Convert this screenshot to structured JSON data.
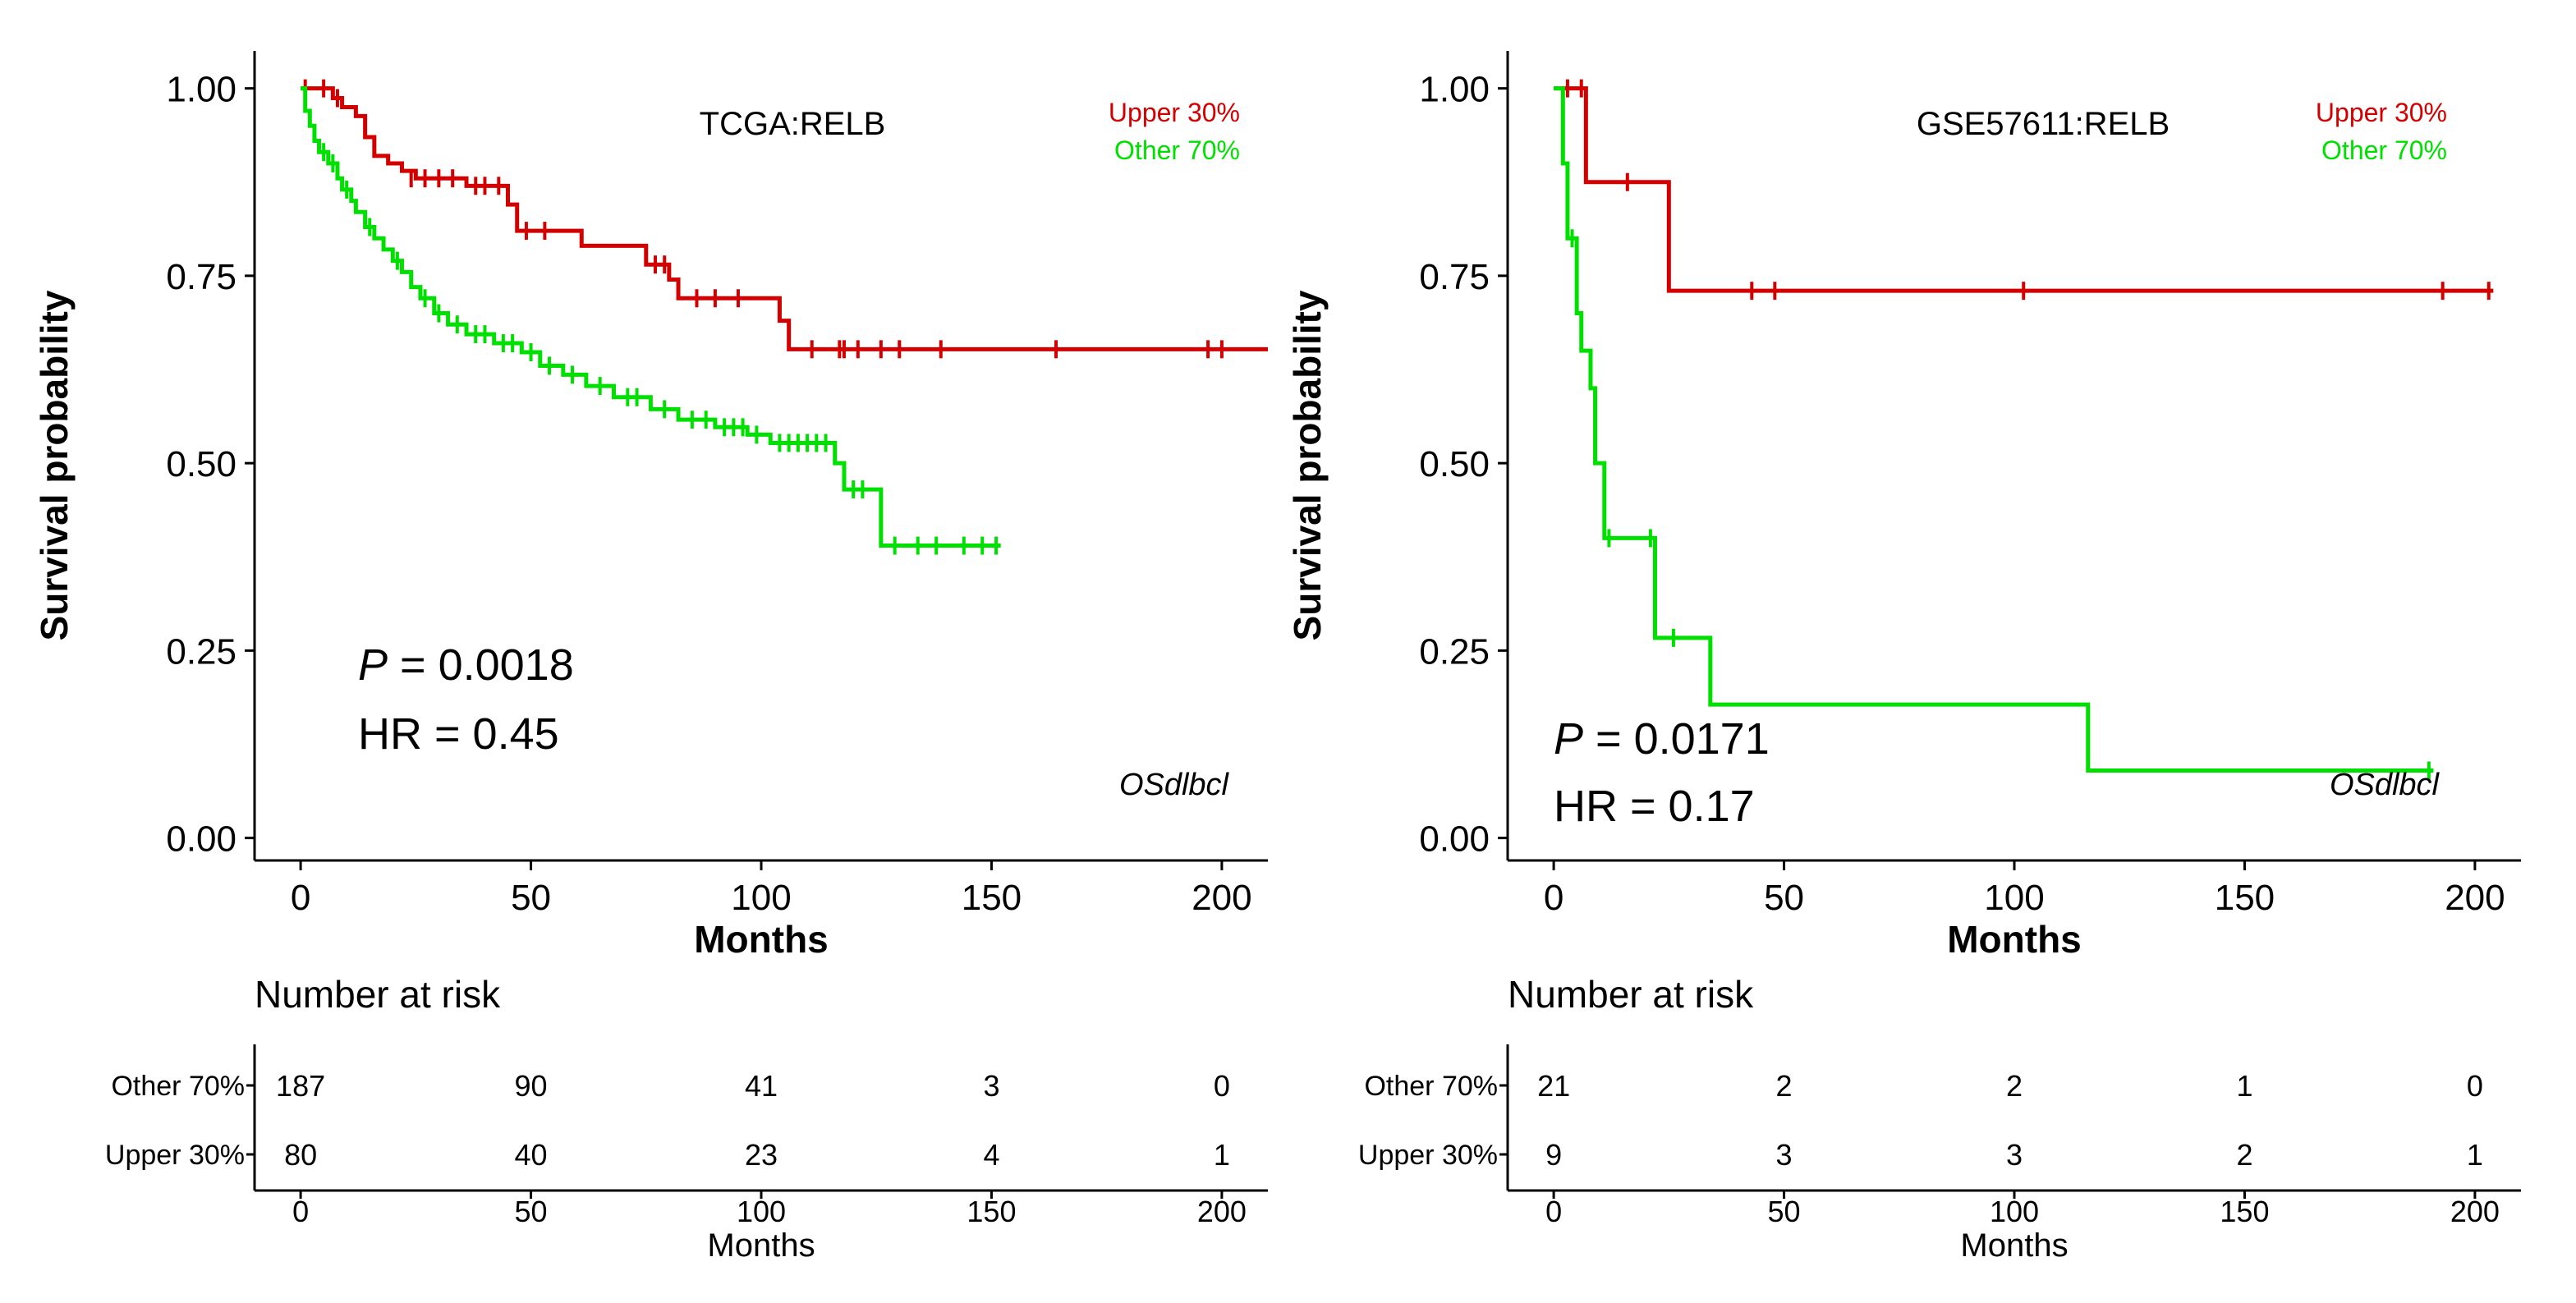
{
  "colors": {
    "upper": "#d40000",
    "other": "#00e000",
    "axis": "#000000"
  },
  "chart_data": [
    {
      "type": "line",
      "subtype": "kaplan-meier",
      "title": "TCGA:RELB",
      "xlabel": "Months",
      "ylabel": "Survival probability",
      "xlim": [
        -10,
        210
      ],
      "ylim": [
        -0.03,
        1.05
      ],
      "xticks": [
        0,
        50,
        100,
        150,
        200
      ],
      "xtick_labels": [
        "0",
        "50",
        "100",
        "150",
        "200"
      ],
      "yticks": [
        0,
        0.25,
        0.5,
        0.75,
        1.0
      ],
      "ytick_labels": [
        "0.00",
        "0.25",
        "0.50",
        "0.75",
        "1.00"
      ],
      "legend": {
        "position": "top-right",
        "entries": [
          "Upper 30%",
          "Other  70%"
        ]
      },
      "p_label": "P",
      "p_value": " = 0.0018",
      "hr_text": "HR = 0.45",
      "corner_label": "OSdlbcl",
      "series": [
        {
          "name": "Upper 30%",
          "color_key": "upper",
          "steps": [
            [
              0,
              1.0
            ],
            [
              7,
              0.987
            ],
            [
              9,
              0.975
            ],
            [
              12,
              0.963
            ],
            [
              14,
              0.935
            ],
            [
              16,
              0.91
            ],
            [
              19,
              0.9
            ],
            [
              22,
              0.89
            ],
            [
              25,
              0.88
            ],
            [
              36,
              0.87
            ],
            [
              45,
              0.845
            ],
            [
              47,
              0.81
            ],
            [
              61,
              0.79
            ],
            [
              75,
              0.765
            ],
            [
              80,
              0.745
            ],
            [
              82,
              0.72
            ],
            [
              104,
              0.69
            ],
            [
              106,
              0.652
            ],
            [
              210,
              0.652
            ]
          ],
          "censor": [
            [
              1,
              1.0
            ],
            [
              5,
              1.0
            ],
            [
              8,
              0.987
            ],
            [
              24,
              0.88
            ],
            [
              27,
              0.88
            ],
            [
              30,
              0.88
            ],
            [
              33,
              0.88
            ],
            [
              38,
              0.87
            ],
            [
              40,
              0.87
            ],
            [
              43,
              0.87
            ],
            [
              49,
              0.81
            ],
            [
              53,
              0.81
            ],
            [
              77,
              0.765
            ],
            [
              79,
              0.765
            ],
            [
              86,
              0.72
            ],
            [
              90,
              0.72
            ],
            [
              95,
              0.72
            ],
            [
              111,
              0.652
            ],
            [
              117,
              0.652
            ],
            [
              118,
              0.652
            ],
            [
              121,
              0.652
            ],
            [
              126,
              0.652
            ],
            [
              130,
              0.652
            ],
            [
              139,
              0.652
            ],
            [
              164,
              0.652
            ],
            [
              197,
              0.652
            ],
            [
              200,
              0.652
            ]
          ]
        },
        {
          "name": "Other  70%",
          "color_key": "other",
          "steps": [
            [
              0,
              1.0
            ],
            [
              1,
              0.97
            ],
            [
              2,
              0.95
            ],
            [
              3,
              0.93
            ],
            [
              4,
              0.915
            ],
            [
              6,
              0.9
            ],
            [
              8,
              0.88
            ],
            [
              9,
              0.865
            ],
            [
              11,
              0.85
            ],
            [
              12,
              0.835
            ],
            [
              14,
              0.815
            ],
            [
              16,
              0.8
            ],
            [
              18,
              0.785
            ],
            [
              20,
              0.77
            ],
            [
              22,
              0.755
            ],
            [
              24,
              0.735
            ],
            [
              26,
              0.72
            ],
            [
              29,
              0.7
            ],
            [
              32,
              0.685
            ],
            [
              36,
              0.672
            ],
            [
              42,
              0.66
            ],
            [
              48,
              0.648
            ],
            [
              52,
              0.63
            ],
            [
              57,
              0.618
            ],
            [
              62,
              0.603
            ],
            [
              68,
              0.588
            ],
            [
              76,
              0.572
            ],
            [
              82,
              0.558
            ],
            [
              90,
              0.548
            ],
            [
              97,
              0.538
            ],
            [
              102,
              0.527
            ],
            [
              116,
              0.5
            ],
            [
              118,
              0.465
            ],
            [
              126,
              0.39
            ],
            [
              152,
              0.39
            ]
          ],
          "censor": [
            [
              5,
              0.915
            ],
            [
              7,
              0.9
            ],
            [
              10,
              0.865
            ],
            [
              15,
              0.815
            ],
            [
              21,
              0.77
            ],
            [
              27,
              0.72
            ],
            [
              30,
              0.7
            ],
            [
              34,
              0.685
            ],
            [
              38,
              0.672
            ],
            [
              40,
              0.672
            ],
            [
              44,
              0.66
            ],
            [
              46,
              0.66
            ],
            [
              50,
              0.648
            ],
            [
              54,
              0.63
            ],
            [
              59,
              0.618
            ],
            [
              65,
              0.603
            ],
            [
              71,
              0.588
            ],
            [
              73,
              0.588
            ],
            [
              79,
              0.572
            ],
            [
              85,
              0.558
            ],
            [
              88,
              0.558
            ],
            [
              92,
              0.548
            ],
            [
              94,
              0.548
            ],
            [
              96,
              0.548
            ],
            [
              99,
              0.538
            ],
            [
              104,
              0.527
            ],
            [
              106,
              0.527
            ],
            [
              108,
              0.527
            ],
            [
              110,
              0.527
            ],
            [
              112,
              0.527
            ],
            [
              114,
              0.527
            ],
            [
              120,
              0.465
            ],
            [
              122,
              0.465
            ],
            [
              129,
              0.39
            ],
            [
              134,
              0.39
            ],
            [
              138,
              0.39
            ],
            [
              144,
              0.39
            ],
            [
              148,
              0.39
            ],
            [
              151,
              0.39
            ]
          ]
        }
      ],
      "risk_table": {
        "title": "Number at risk",
        "xlabel": "Months",
        "times": [
          0,
          50,
          100,
          150,
          200
        ],
        "rows": [
          {
            "label": "Other  70%",
            "values": [
              "187",
              "90",
              "41",
              "3",
              "0"
            ]
          },
          {
            "label": "Upper 30%",
            "values": [
              "80",
              "40",
              "23",
              "4",
              "1"
            ]
          }
        ]
      }
    },
    {
      "type": "line",
      "subtype": "kaplan-meier",
      "title": "GSE57611:RELB",
      "xlabel": "Months",
      "ylabel": "Survival probability",
      "xlim": [
        -10,
        210
      ],
      "ylim": [
        -0.03,
        1.05
      ],
      "xticks": [
        0,
        50,
        100,
        150,
        200
      ],
      "xtick_labels": [
        "0",
        "50",
        "100",
        "150",
        "200"
      ],
      "yticks": [
        0,
        0.25,
        0.5,
        0.75,
        1.0
      ],
      "ytick_labels": [
        "0.00",
        "0.25",
        "0.50",
        "0.75",
        "1.00"
      ],
      "legend": {
        "position": "top-right",
        "entries": [
          "Upper 30%",
          "Other  70%"
        ]
      },
      "p_label": "P",
      "p_value": " = 0.0171",
      "hr_text": "HR = 0.17",
      "corner_label": "OSdlbcl",
      "series": [
        {
          "name": "Upper 30%",
          "color_key": "upper",
          "steps": [
            [
              0,
              1.0
            ],
            [
              7,
              0.875
            ],
            [
              25,
              0.73
            ],
            [
              204,
              0.73
            ]
          ],
          "censor": [
            [
              3,
              1.0
            ],
            [
              6,
              1.0
            ],
            [
              16,
              0.875
            ],
            [
              43,
              0.73
            ],
            [
              48,
              0.73
            ],
            [
              102,
              0.73
            ],
            [
              193,
              0.73
            ],
            [
              203,
              0.73
            ]
          ]
        },
        {
          "name": "Other  70%",
          "color_key": "other",
          "steps": [
            [
              0,
              1.0
            ],
            [
              2,
              0.9
            ],
            [
              3,
              0.8
            ],
            [
              5,
              0.7
            ],
            [
              6,
              0.65
            ],
            [
              8,
              0.6
            ],
            [
              9,
              0.5
            ],
            [
              11,
              0.4
            ],
            [
              22,
              0.267
            ],
            [
              34,
              0.178
            ],
            [
              116,
              0.09
            ],
            [
              191,
              0.09
            ]
          ],
          "censor": [
            [
              4,
              0.8
            ],
            [
              12,
              0.4
            ],
            [
              21,
              0.4
            ],
            [
              26,
              0.267
            ],
            [
              190,
              0.09
            ]
          ]
        }
      ],
      "risk_table": {
        "title": "Number at risk",
        "xlabel": "Months",
        "times": [
          0,
          50,
          100,
          150,
          200
        ],
        "rows": [
          {
            "label": "Other  70%",
            "values": [
              "21",
              "2",
              "2",
              "1",
              "0"
            ]
          },
          {
            "label": "Upper 30%",
            "values": [
              "9",
              "3",
              "3",
              "2",
              "1"
            ]
          }
        ]
      }
    }
  ]
}
